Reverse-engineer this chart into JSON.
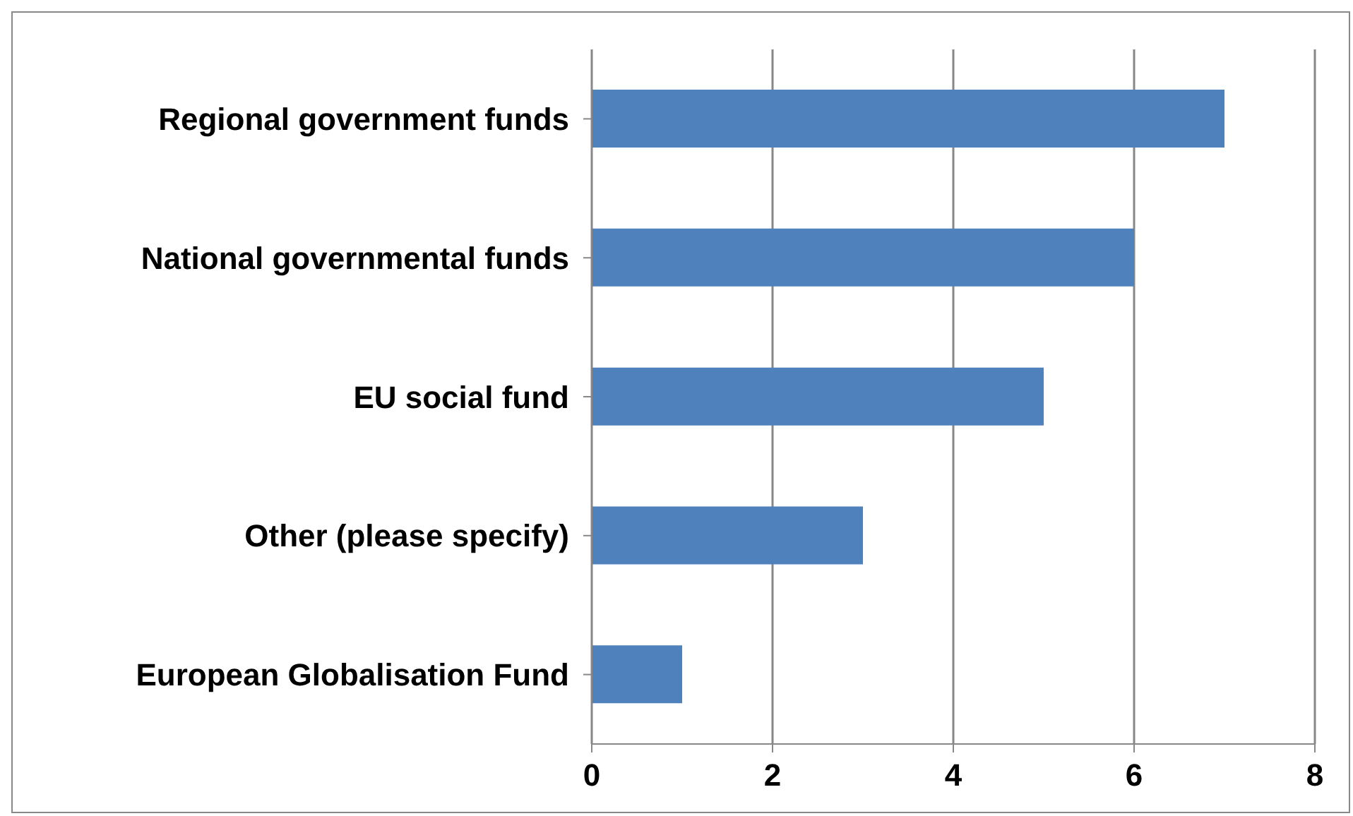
{
  "chart_data": {
    "type": "bar",
    "orientation": "horizontal",
    "categories": [
      "Regional government funds",
      "National governmental funds",
      "EU social fund",
      "Other (please specify)",
      "European Globalisation Fund"
    ],
    "values": [
      7,
      6,
      5,
      3,
      1
    ],
    "color": "#4f81bd",
    "xlim": [
      0,
      8
    ],
    "xticks": [
      0,
      2,
      4,
      6,
      8
    ],
    "grid": "x"
  }
}
